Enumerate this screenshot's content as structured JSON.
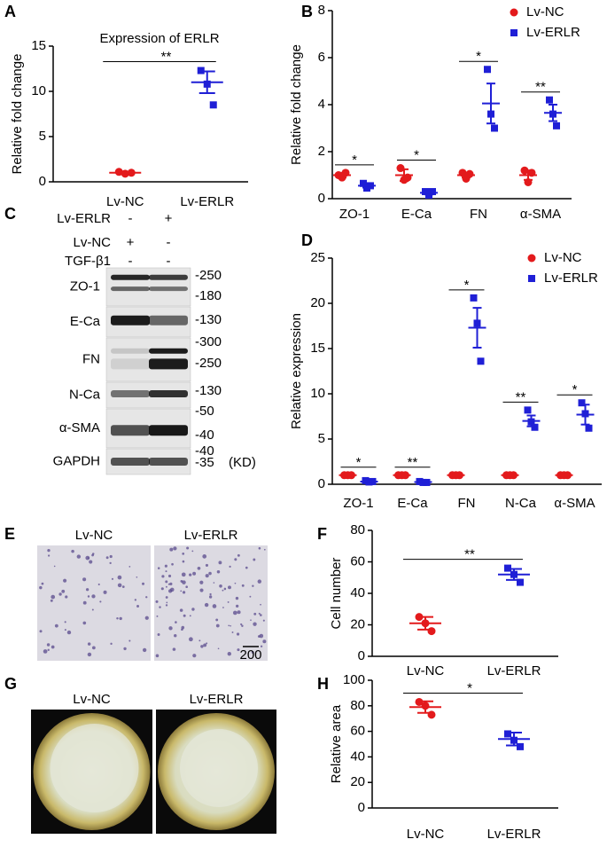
{
  "chart_data": [
    {
      "type": "dotplot",
      "label": "A",
      "title": "Expression of  ERLR",
      "ylabel": "Relative fold change",
      "categories": [
        "Lv-NC",
        "Lv-ERLR"
      ],
      "colors": [
        "#e31a1c",
        "#1f1fd6"
      ],
      "markers": [
        "circle",
        "square"
      ],
      "values": [
        1.0,
        11.0
      ],
      "errors": [
        0.1,
        1.2
      ],
      "points": [
        [
          1.1,
          0.9,
          1.0
        ],
        [
          12.3,
          10.8,
          8.5
        ]
      ],
      "annotation": "**",
      "ylim": [
        0,
        15
      ],
      "yticks": [
        0,
        5,
        10,
        15
      ]
    },
    {
      "type": "grouped_dotplot",
      "label": "B",
      "ylabel": "Relative fold change",
      "categories": [
        "ZO-1",
        "E-Ca",
        "FN",
        "α-SMA"
      ],
      "series": [
        {
          "name": "Lv-NC",
          "color": "#e31a1c",
          "marker": "circle",
          "values": [
            1.0,
            1.0,
            1.0,
            1.0
          ],
          "errors": [
            0.1,
            0.25,
            0.1,
            0.2
          ],
          "points": [
            [
              1.0,
              0.9,
              1.1
            ],
            [
              1.3,
              0.8,
              0.9
            ],
            [
              1.1,
              0.85,
              1.05
            ],
            [
              1.2,
              0.7,
              1.1
            ]
          ]
        },
        {
          "name": "Lv-ERLR",
          "color": "#1f1fd6",
          "marker": "square",
          "values": [
            0.55,
            0.25,
            4.05,
            3.65
          ],
          "errors": [
            0.08,
            0.07,
            0.85,
            0.35
          ],
          "points": [
            [
              0.65,
              0.45,
              0.55
            ],
            [
              0.3,
              0.15,
              0.3
            ],
            [
              5.5,
              3.6,
              3.0
            ],
            [
              4.2,
              3.6,
              3.1
            ]
          ]
        }
      ],
      "significance": [
        "*",
        "*",
        "*",
        "**"
      ],
      "ylim": [
        0,
        8
      ],
      "yticks": [
        0,
        2,
        4,
        6,
        8
      ],
      "legend": "top-right"
    },
    {
      "type": "grouped_dotplot",
      "label": "D",
      "ylabel": "Relative expression",
      "categories": [
        "ZO-1",
        "E-Ca",
        "FN",
        "N-Ca",
        "α-SMA"
      ],
      "series": [
        {
          "name": "Lv-NC",
          "color": "#e31a1c",
          "marker": "circle",
          "values": [
            1.0,
            1.0,
            1.0,
            1.0,
            1.0
          ],
          "errors": [
            0.05,
            0.05,
            0.05,
            0.05,
            0.05
          ],
          "points": [
            [
              1.0,
              1.0,
              1.0
            ],
            [
              1.0,
              1.0,
              1.0
            ],
            [
              1.0,
              1.0,
              1.0
            ],
            [
              1.0,
              1.0,
              1.0
            ],
            [
              1.0,
              1.0,
              1.0
            ]
          ]
        },
        {
          "name": "Lv-ERLR",
          "color": "#1f1fd6",
          "marker": "square",
          "values": [
            0.3,
            0.25,
            17.3,
            7.0,
            7.7
          ],
          "errors": [
            0.05,
            0.05,
            2.2,
            0.6,
            1.1
          ],
          "points": [
            [
              0.4,
              0.25,
              0.3
            ],
            [
              0.3,
              0.2,
              0.2
            ],
            [
              20.6,
              17.8,
              13.6
            ],
            [
              8.2,
              6.9,
              6.3
            ],
            [
              9.0,
              7.8,
              6.2
            ]
          ]
        }
      ],
      "significance": [
        "*",
        "**",
        "*",
        "**",
        "*"
      ],
      "ylim": [
        0,
        25
      ],
      "yticks": [
        0,
        5,
        10,
        15,
        20,
        25
      ],
      "legend": "top-right"
    },
    {
      "type": "dotplot",
      "label": "F",
      "ylabel": "Cell number",
      "categories": [
        "Lv-NC",
        "Lv-ERLR"
      ],
      "colors": [
        "#e31a1c",
        "#1f1fd6"
      ],
      "markers": [
        "circle",
        "square"
      ],
      "values": [
        21,
        52
      ],
      "errors": [
        4,
        3.5
      ],
      "points": [
        [
          25,
          21,
          16
        ],
        [
          56,
          52,
          47
        ]
      ],
      "annotation": "**",
      "ylim": [
        0,
        80
      ],
      "yticks": [
        0,
        20,
        40,
        60,
        80
      ]
    },
    {
      "type": "dotplot",
      "label": "H",
      "ylabel": "Relative area",
      "categories": [
        "Lv-NC",
        "Lv-ERLR"
      ],
      "colors": [
        "#e31a1c",
        "#1f1fd6"
      ],
      "markers": [
        "circle",
        "square"
      ],
      "values": [
        79,
        54
      ],
      "errors": [
        4.5,
        5
      ],
      "points": [
        [
          83,
          80,
          73
        ],
        [
          58,
          53,
          48
        ]
      ],
      "annotation": "*",
      "ylim": [
        0,
        100
      ],
      "yticks": [
        0,
        20,
        40,
        60,
        80,
        100
      ]
    }
  ],
  "blot": {
    "label": "C",
    "header_rows": [
      {
        "name": "Lv-ERLR",
        "marks": [
          "-",
          "+"
        ]
      },
      {
        "name": "Lv-NC",
        "marks": [
          "+",
          "-"
        ]
      },
      {
        "name": "TGF-β1",
        "marks": [
          "-",
          "-"
        ]
      }
    ],
    "bands": [
      {
        "name": "ZO-1",
        "mw": [
          "-250",
          "-180"
        ]
      },
      {
        "name": "E-Ca",
        "mw": [
          "-130"
        ]
      },
      {
        "name": "FN",
        "mw": [
          "-300",
          "-250"
        ]
      },
      {
        "name": "N-Ca",
        "mw": [
          "-130"
        ]
      },
      {
        "name": "α-SMA",
        "mw": [
          "-50",
          "-40"
        ]
      },
      {
        "name": "GAPDH",
        "mw": [
          "-40",
          "-35"
        ]
      }
    ],
    "unit": "(KD)"
  },
  "images": [
    {
      "label": "E",
      "captions": [
        "Lv-NC",
        "Lv-ERLR"
      ],
      "scale": "200"
    },
    {
      "label": "G",
      "captions": [
        "Lv-NC",
        "Lv-ERLR"
      ]
    }
  ]
}
